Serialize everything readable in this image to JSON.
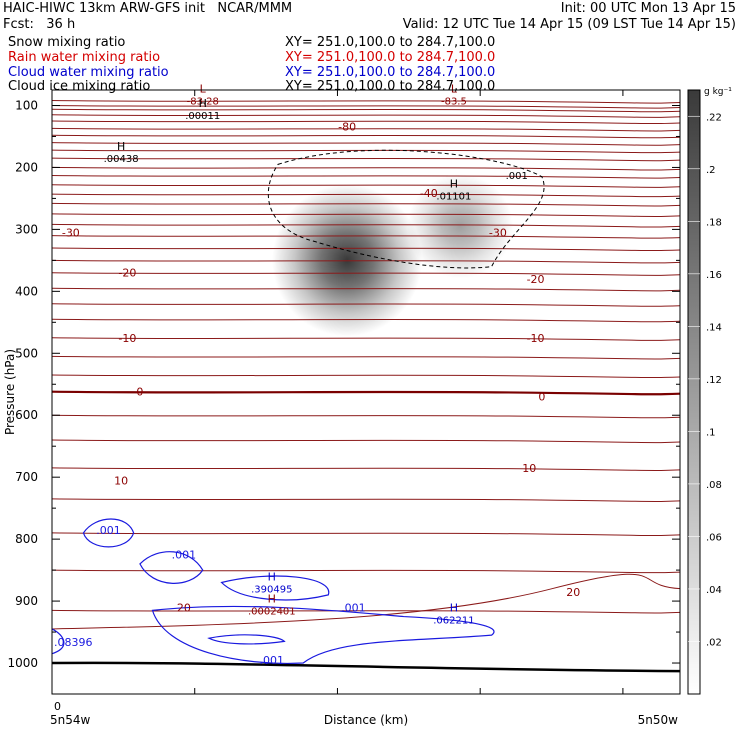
{
  "header": {
    "title": "HAIC-HIWC 13km ARW-GFS init   NCAR/MMM",
    "init": "Init: 00 UTC Mon 13 Apr 15",
    "fcst": "Fcst:   36 h",
    "valid": "Valid: 12 UTC Tue 14 Apr 15 (09 LST Tue 14 Apr 15)",
    "fields": [
      {
        "name": "Snow mixing ratio",
        "xy": "XY= 251.0,100.0 to 284.7,100.0",
        "color": "#000000"
      },
      {
        "name": "Rain water mixing ratio",
        "xy": "XY= 251.0,100.0 to 284.7,100.0",
        "color": "#d40000"
      },
      {
        "name": "Cloud water mixing ratio",
        "xy": "XY= 251.0,100.0 to 284.7,100.0",
        "color": "#0000cc"
      },
      {
        "name": "Cloud ice mixing ratio",
        "xy": "XY= 251.0,100.0 to 284.7,100.0",
        "color": "#000000"
      }
    ]
  },
  "chart_data": {
    "type": "cross-section",
    "xlabel": "Distance (km)",
    "ylabel": "Pressure (hPa)",
    "x_ticks": [
      {
        "pos": 0,
        "label": "0"
      }
    ],
    "x_end_labels": {
      "left": "5n54w",
      "right": "5n50w"
    },
    "y_ticks": [
      100,
      200,
      300,
      400,
      500,
      600,
      700,
      800,
      900,
      1000
    ],
    "ylim": [
      1050,
      75
    ],
    "colorbar": {
      "unit": "g kg⁻¹",
      "ticks": [
        ".02",
        ".04",
        ".06",
        ".08",
        ".1",
        ".12",
        ".14",
        ".16",
        ".18",
        ".2",
        ".22"
      ],
      "range": [
        0,
        0.23
      ]
    },
    "temperature_contour_labels": [
      {
        "text": "-80",
        "x": 0.47,
        "p": 134
      },
      {
        "text": "-40",
        "x": 0.6,
        "p": 241
      },
      {
        "text": "-30",
        "x": 0.03,
        "p": 305
      },
      {
        "text": "-30",
        "x": 0.71,
        "p": 305
      },
      {
        "text": "-20",
        "x": 0.12,
        "p": 370
      },
      {
        "text": "-20",
        "x": 0.77,
        "p": 380
      },
      {
        "text": "-10",
        "x": 0.12,
        "p": 475
      },
      {
        "text": "-10",
        "x": 0.77,
        "p": 475
      },
      {
        "text": "0",
        "x": 0.14,
        "p": 562
      },
      {
        "text": "0",
        "x": 0.78,
        "p": 570
      },
      {
        "text": "10",
        "x": 0.11,
        "p": 705
      },
      {
        "text": "10",
        "x": 0.76,
        "p": 685
      },
      {
        "text": "20",
        "x": 0.21,
        "p": 910
      },
      {
        "text": "20",
        "x": 0.83,
        "p": 885
      }
    ],
    "extrema": [
      {
        "kind": "L",
        "value": "-83.28",
        "x": 0.24,
        "p": 92,
        "color": "#8b0000"
      },
      {
        "kind": "L",
        "value": "-83.5",
        "x": 0.64,
        "p": 92,
        "color": "#8b0000"
      },
      {
        "kind": "H",
        "value": ".00011",
        "x": 0.24,
        "p": 115,
        "color": "#000000"
      },
      {
        "kind": "H",
        "value": ".00438",
        "x": 0.11,
        "p": 185,
        "color": "#000000"
      },
      {
        "kind": "H",
        "value": ".01101",
        "x": 0.64,
        "p": 245,
        "color": "#000000"
      },
      {
        "kind": "H",
        "value": ".390495",
        "x": 0.35,
        "p": 880,
        "color": "#0000cc"
      },
      {
        "kind": "H",
        "value": ".0002401",
        "x": 0.35,
        "p": 915,
        "color": "#8b0000"
      },
      {
        "kind": "H",
        "value": ".062211",
        "x": 0.64,
        "p": 930,
        "color": "#0000cc"
      }
    ],
    "ice_contour_labels": [
      {
        "text": ".001",
        "x": 0.74,
        "p": 212
      }
    ],
    "cloud_water_labels": [
      {
        "text": ".001",
        "x": 0.09,
        "p": 785
      },
      {
        "text": ".001",
        "x": 0.21,
        "p": 825
      },
      {
        "text": ".001",
        "x": 0.48,
        "p": 910
      },
      {
        "text": ".001",
        "x": 0.35,
        "p": 995
      },
      {
        "text": ".08396",
        "x": -0.01,
        "p": 966
      }
    ],
    "shading_blobs": [
      {
        "x": 0.47,
        "p": 350,
        "peak": 0.23
      },
      {
        "x": 0.65,
        "p": 295,
        "peak": 0.1
      }
    ]
  }
}
